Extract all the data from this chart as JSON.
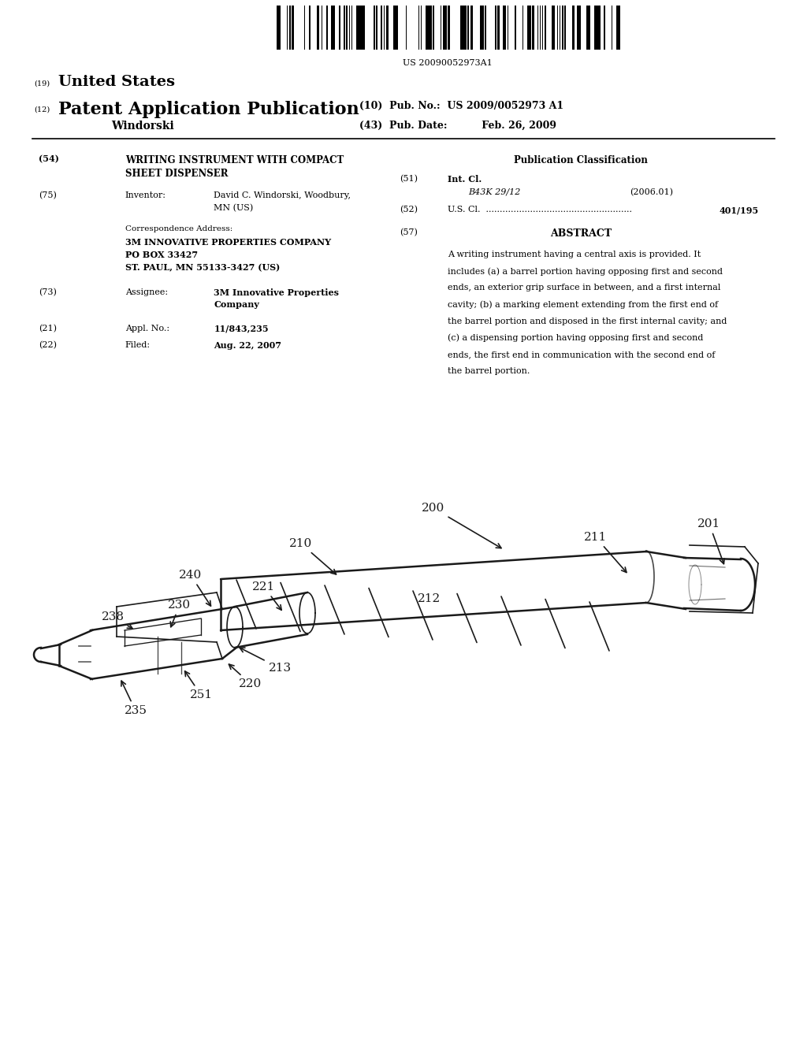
{
  "bg_color": "#ffffff",
  "barcode_text": "US 20090052973A1",
  "header_19": "(19)",
  "header_19_text": "United States",
  "header_12": "(12)",
  "header_12_text": "Patent Application Publication",
  "header_10_text": "(10)  Pub. No.:  US 2009/0052973 A1",
  "inventor_name": "Windorski",
  "header_43_text": "(43)  Pub. Date:          Feb. 26, 2009",
  "section54_num": "(54)",
  "section54_title_line1": "WRITING INSTRUMENT WITH COMPACT",
  "section54_title_line2": "SHEET DISPENSER",
  "section75_num": "(75)",
  "section75_label": "Inventor:",
  "section75_val1": "David C. Windorski, Woodbury,",
  "section75_val2": "MN (US)",
  "corr_label": "Correspondence Address:",
  "corr_line1": "3M INNOVATIVE PROPERTIES COMPANY",
  "corr_line2": "PO BOX 33427",
  "corr_line3": "ST. PAUL, MN 55133-3427 (US)",
  "section73_num": "(73)",
  "section73_label": "Assignee:",
  "section73_val1": "3M Innovative Properties",
  "section73_val2": "Company",
  "section21_num": "(21)",
  "section21_label": "Appl. No.:",
  "section21_value": "11/843,235",
  "section22_num": "(22)",
  "section22_label": "Filed:",
  "section22_value": "Aug. 22, 2007",
  "pub_class_title": "Publication Classification",
  "section51_num": "(51)",
  "section51_label": "Int. Cl.",
  "section51_class": "B43K 29/12",
  "section51_year": "(2006.01)",
  "section52_num": "(52)",
  "section52_label": "U.S. Cl.  .....................................................",
  "section52_value": "401/195",
  "section57_num": "(57)",
  "section57_title": "ABSTRACT",
  "abstract_lines": [
    "A writing instrument having a central axis is provided. It",
    "includes (a) a barrel portion having opposing first and second",
    "ends, an exterior grip surface in between, and a first internal",
    "cavity; (b) a marking element extending from the first end of",
    "the barrel portion and disposed in the first internal cavity; and",
    "(c) a dispensing portion having opposing first and second",
    "ends, the first end in communication with the second end of",
    "the barrel portion."
  ],
  "line_color": "#1a1a1a",
  "lw_main": 1.8,
  "lw_thin": 1.2,
  "label_fontsize": 11
}
